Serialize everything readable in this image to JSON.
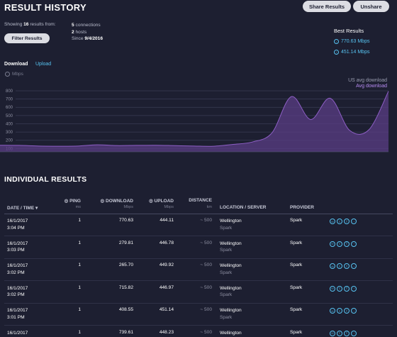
{
  "header": {
    "title": "RESULT HISTORY",
    "share_label": "Share Results",
    "unshare_label": "Unshare"
  },
  "summary": {
    "showing_prefix": "Showing",
    "count": "16",
    "showing_suffix": "results from:",
    "connections": "5",
    "connections_label": "connections",
    "hosts": "2",
    "hosts_label": "hosts",
    "since_label": "Since",
    "since_date": "9/4/2016",
    "filter_label": "Filter Results"
  },
  "best": {
    "title": "Best Results",
    "download": "770.63 Mbps",
    "upload": "451.14 Mbps"
  },
  "tabs": {
    "download": "Download",
    "upload": "Upload"
  },
  "chart_data": {
    "type": "area",
    "unit_label": "Mbps",
    "legend": [
      "US avg download",
      "Avg download"
    ],
    "y_ticks": [
      "800",
      "700",
      "600",
      "500",
      "400",
      "300",
      "200",
      "100"
    ],
    "ylim": [
      60,
      800
    ],
    "values": [
      140,
      138,
      130,
      128,
      130,
      145,
      136,
      138,
      140,
      135,
      130,
      128,
      150,
      180,
      290,
      730,
      452,
      710,
      320,
      330,
      795
    ],
    "colors": {
      "line": "#8e5fc6",
      "fill": "#5a3d84",
      "us_avg": "#9a9db0"
    }
  },
  "results": {
    "title": "INDIVIDUAL RESULTS",
    "columns": {
      "date": "DATE / TIME",
      "ping": "PING",
      "ping_unit": "ms",
      "download": "DOWNLOAD",
      "download_unit": "Mbps",
      "upload": "UPLOAD",
      "upload_unit": "Mbps",
      "distance": "DISTANCE",
      "distance_unit": "km",
      "location": "LOCATION / SERVER",
      "provider": "PROVIDER"
    },
    "rows": [
      {
        "date": "16/1/2017",
        "time": "3:04 PM",
        "ping": "1",
        "download": "770.63",
        "upload": "444.11",
        "distance": "~ 500",
        "location": "Wellington",
        "server": "Spark",
        "provider": "Spark"
      },
      {
        "date": "16/1/2017",
        "time": "3:03 PM",
        "ping": "1",
        "download": "279.81",
        "upload": "446.78",
        "distance": "~ 500",
        "location": "Wellington",
        "server": "Spark",
        "provider": "Spark"
      },
      {
        "date": "16/1/2017",
        "time": "3:02 PM",
        "ping": "1",
        "download": "265.70",
        "upload": "449.92",
        "distance": "~ 500",
        "location": "Wellington",
        "server": "Spark",
        "provider": "Spark"
      },
      {
        "date": "16/1/2017",
        "time": "3:02 PM",
        "ping": "1",
        "download": "715.82",
        "upload": "446.97",
        "distance": "~ 500",
        "location": "Wellington",
        "server": "Spark",
        "provider": "Spark"
      },
      {
        "date": "16/1/2017",
        "time": "3:01 PM",
        "ping": "1",
        "download": "408.55",
        "upload": "451.14",
        "distance": "~ 500",
        "location": "Wellington",
        "server": "Spark",
        "provider": "Spark"
      },
      {
        "date": "16/1/2017",
        "time": "2:48 PM",
        "ping": "1",
        "download": "739.61",
        "upload": "448.23",
        "distance": "~ 500",
        "location": "Wellington",
        "server": "Spark",
        "provider": "Spark"
      }
    ]
  }
}
